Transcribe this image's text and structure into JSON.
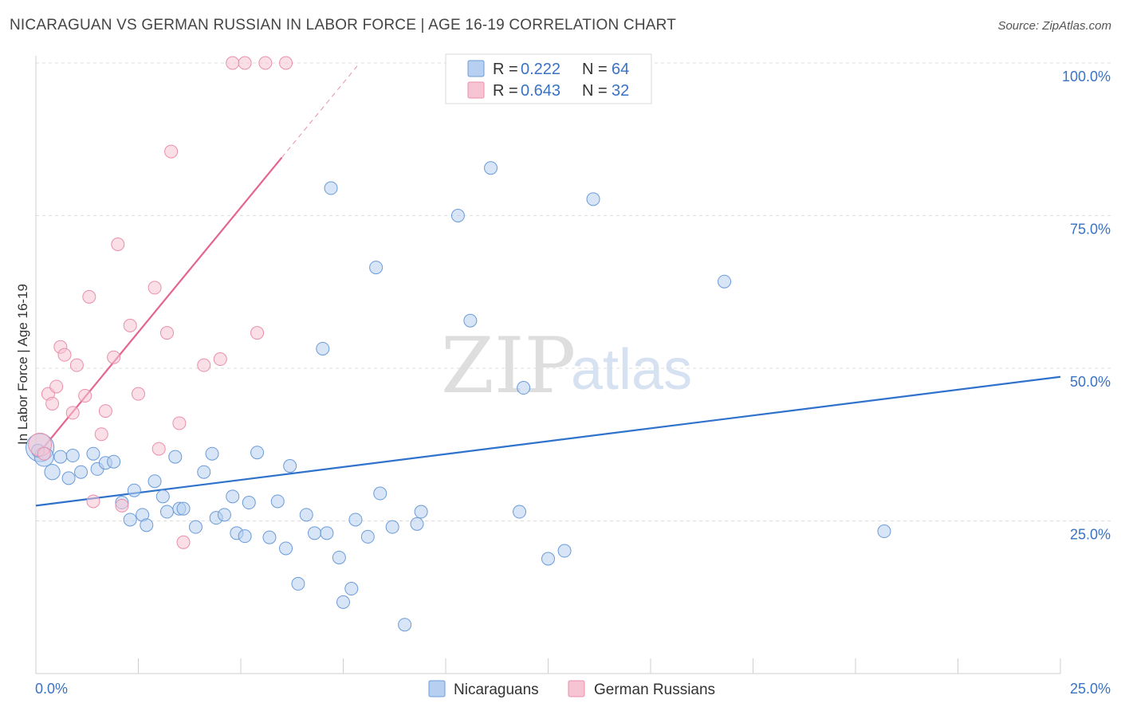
{
  "title": "NICARAGUAN VS GERMAN RUSSIAN IN LABOR FORCE | AGE 16-19 CORRELATION CHART",
  "source": "Source: ZipAtlas.com",
  "watermark": {
    "zip": "ZIP",
    "atlas": "atlas"
  },
  "colors": {
    "blue_fill": "#b7d0f1",
    "blue_stroke": "#6b9bd8",
    "blue_line": "#2f72cc",
    "pink_fill": "#f7c4d3",
    "pink_stroke": "#e98fab",
    "pink_line": "#e5658e",
    "grid": "#dcdcdc",
    "axis_text": "#3a72c4"
  },
  "legend": {
    "r_label": "R =",
    "n_label": "N =",
    "rows": [
      {
        "r": "0.222",
        "n": "64"
      },
      {
        "r": "0.643",
        "n": "32"
      }
    ]
  },
  "chart_data": {
    "type": "scatter",
    "title": "NICARAGUAN VS GERMAN RUSSIAN IN LABOR FORCE | AGE 16-19 CORRELATION CHART",
    "xlabel": "",
    "ylabel": "In Labor Force | Age 16-19",
    "xlim": [
      0,
      25
    ],
    "ylim": [
      0,
      102
    ],
    "x_tick_labels": [
      "0.0%",
      "25.0%"
    ],
    "y_ticks": [
      25,
      50,
      75,
      100
    ],
    "y_tick_labels": [
      "25.0%",
      "50.0%",
      "75.0%",
      "100.0%"
    ],
    "grid": true,
    "legend_position": "top-center",
    "series": [
      {
        "name": "Nicaraguans",
        "r": 0.222,
        "n": 64,
        "trend": {
          "x": [
            0,
            25
          ],
          "y": [
            27.5,
            48.6
          ]
        },
        "points": [
          [
            0.1,
            37,
            2.2
          ],
          [
            0.2,
            35.5,
            1.5
          ],
          [
            0.4,
            33,
            1.2
          ],
          [
            0.6,
            35.5,
            1
          ],
          [
            0.8,
            32,
            1
          ],
          [
            0.9,
            35.7,
            1
          ],
          [
            1.1,
            33,
            1
          ],
          [
            1.4,
            36,
            1
          ],
          [
            1.5,
            33.5,
            1
          ],
          [
            1.7,
            34.5,
            1
          ],
          [
            1.9,
            34.7,
            1
          ],
          [
            2.1,
            28,
            1
          ],
          [
            2.3,
            25.2,
            1
          ],
          [
            2.4,
            30,
            1
          ],
          [
            2.6,
            26,
            1
          ],
          [
            2.7,
            24.3,
            1
          ],
          [
            2.9,
            31.5,
            1
          ],
          [
            3.1,
            29,
            1
          ],
          [
            3.2,
            26.5,
            1
          ],
          [
            3.4,
            35.5,
            1
          ],
          [
            3.5,
            27,
            1
          ],
          [
            3.6,
            27,
            1
          ],
          [
            3.9,
            24,
            1
          ],
          [
            4.1,
            33,
            1
          ],
          [
            4.3,
            36,
            1
          ],
          [
            4.4,
            25.5,
            1
          ],
          [
            4.6,
            26,
            1
          ],
          [
            4.8,
            29,
            1
          ],
          [
            4.9,
            23,
            1
          ],
          [
            5.1,
            22.5,
            1
          ],
          [
            5.2,
            28,
            1
          ],
          [
            5.4,
            36.2,
            1
          ],
          [
            5.7,
            22.3,
            1
          ],
          [
            5.9,
            28.2,
            1
          ],
          [
            6.1,
            20.5,
            1
          ],
          [
            6.2,
            34,
            1
          ],
          [
            6.4,
            14.7,
            1
          ],
          [
            6.6,
            26,
            1
          ],
          [
            6.8,
            23,
            1
          ],
          [
            7.0,
            53.2,
            1
          ],
          [
            7.1,
            23,
            1
          ],
          [
            7.2,
            79.5,
            1
          ],
          [
            7.4,
            19,
            1
          ],
          [
            7.5,
            11.7,
            1
          ],
          [
            7.7,
            13.9,
            1
          ],
          [
            7.8,
            25.2,
            1
          ],
          [
            8.1,
            22.4,
            1
          ],
          [
            8.3,
            66.5,
            1
          ],
          [
            8.4,
            29.5,
            1
          ],
          [
            8.7,
            24,
            1
          ],
          [
            9.0,
            8,
            1
          ],
          [
            9.3,
            24.5,
            1
          ],
          [
            9.4,
            26.5,
            1
          ],
          [
            10.3,
            75,
            1
          ],
          [
            10.6,
            57.8,
            1
          ],
          [
            11.1,
            82.8,
            1
          ],
          [
            11.8,
            26.5,
            1
          ],
          [
            11.9,
            46.8,
            1
          ],
          [
            12.5,
            18.8,
            1
          ],
          [
            12.9,
            20.1,
            1
          ],
          [
            13.6,
            77.7,
            1
          ],
          [
            16.8,
            64.2,
            1
          ],
          [
            20.7,
            23.3,
            1
          ],
          [
            0.05,
            36.5,
            1
          ]
        ]
      },
      {
        "name": "German Russians",
        "r": 0.643,
        "n": 32,
        "trend": {
          "x": [
            0,
            6.0
          ],
          "y": [
            35.5,
            84.5
          ]
        },
        "trend_dashed": {
          "x": [
            6.0,
            7.9
          ],
          "y": [
            84.5,
            100
          ]
        },
        "points": [
          [
            0.1,
            37.5,
            1.8
          ],
          [
            0.2,
            36,
            1
          ],
          [
            0.3,
            45.8,
            1
          ],
          [
            0.4,
            44.2,
            1
          ],
          [
            0.5,
            47,
            1
          ],
          [
            0.6,
            53.5,
            1
          ],
          [
            0.7,
            52.2,
            1
          ],
          [
            0.9,
            42.7,
            1
          ],
          [
            1.0,
            50.5,
            1
          ],
          [
            1.2,
            45.5,
            1
          ],
          [
            1.3,
            61.7,
            1
          ],
          [
            1.4,
            28.2,
            1
          ],
          [
            1.6,
            39.2,
            1
          ],
          [
            1.7,
            43,
            1
          ],
          [
            1.9,
            51.8,
            1
          ],
          [
            2.0,
            70.3,
            1
          ],
          [
            2.1,
            27.5,
            1
          ],
          [
            2.3,
            57,
            1
          ],
          [
            2.5,
            45.8,
            1
          ],
          [
            2.9,
            63.2,
            1
          ],
          [
            3.0,
            36.8,
            1
          ],
          [
            3.2,
            55.8,
            1
          ],
          [
            3.3,
            85.5,
            1
          ],
          [
            3.5,
            41,
            1
          ],
          [
            3.6,
            21.5,
            1
          ],
          [
            4.1,
            50.5,
            1
          ],
          [
            4.5,
            51.5,
            1
          ],
          [
            4.8,
            100,
            1
          ],
          [
            5.1,
            100,
            1
          ],
          [
            5.4,
            55.8,
            1
          ],
          [
            5.6,
            100,
            1
          ],
          [
            6.1,
            100,
            1
          ]
        ]
      }
    ]
  },
  "bottom_legend": [
    {
      "label": "Nicaraguans"
    },
    {
      "label": "German Russians"
    }
  ]
}
